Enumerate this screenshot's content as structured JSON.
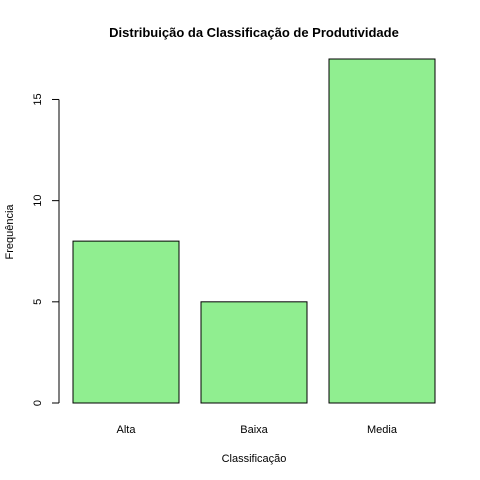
{
  "chart_data": {
    "type": "bar",
    "title": "Distribuição da Classificação de Produtividade",
    "xlabel": "Classificação",
    "ylabel": "Frequência",
    "categories": [
      "Alta",
      "Baixa",
      "Media"
    ],
    "values": [
      8,
      5,
      17
    ],
    "ylim": [
      0,
      17
    ],
    "yticks": [
      0,
      5,
      10,
      15
    ],
    "grid": false,
    "legend": "none",
    "bar_color": "#90EE90",
    "bar_border_color": "#000000"
  }
}
